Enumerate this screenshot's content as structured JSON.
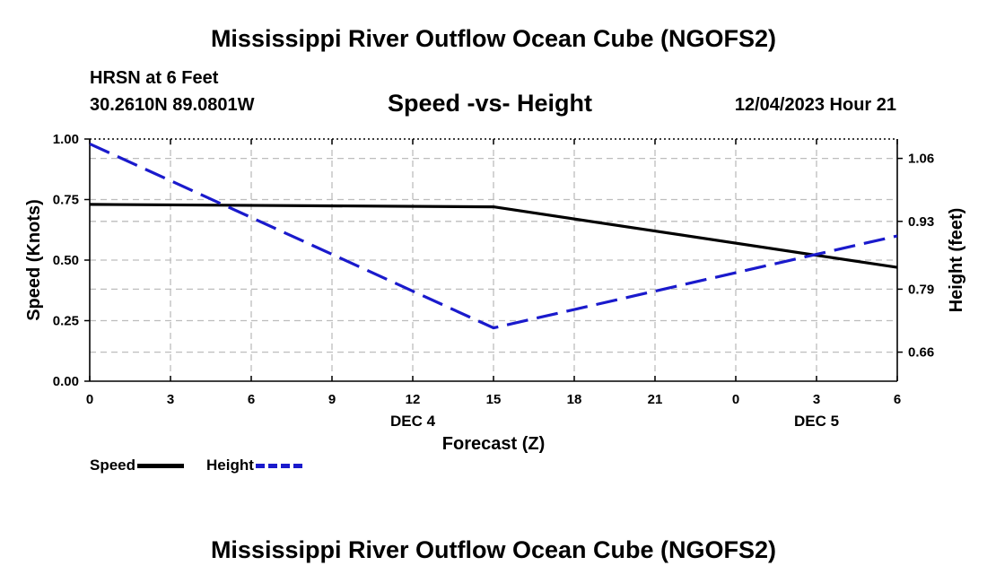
{
  "header": {
    "title": "Mississippi River Outflow Ocean Cube (NGOFS2)",
    "station": "HRSN at 6 Feet",
    "coords": "30.2610N  89.0801W",
    "datetime": "12/04/2023 Hour 21"
  },
  "footer": {
    "title": "Mississippi River Outflow Ocean Cube (NGOFS2)"
  },
  "chart_data": {
    "type": "line",
    "title": "Speed -vs- Height",
    "xlabel": "Forecast (Z)",
    "ylabel": "Speed (Knots)",
    "y2label": "Height (feet)",
    "x": [
      0,
      15,
      30
    ],
    "x_tick_labels": [
      "0",
      "3",
      "6",
      "9",
      "12",
      "15",
      "18",
      "21",
      "0",
      "3",
      "6"
    ],
    "date_labels": [
      {
        "label": "DEC 4",
        "at_hour": 12
      },
      {
        "label": "DEC 5",
        "at_hour": 27
      }
    ],
    "xlim": [
      0,
      30
    ],
    "ylim": [
      0,
      1.0
    ],
    "y_ticks": [
      "0.00",
      "0.25",
      "0.50",
      "0.75",
      "1.00"
    ],
    "y2lim": [
      0.6,
      1.1
    ],
    "y2_ticks": [
      "0.66",
      "0.79",
      "0.93",
      "1.06"
    ],
    "grid": true,
    "series": [
      {
        "name": "Speed",
        "axis": "left",
        "color": "#000000",
        "style": "solid",
        "x": [
          0,
          15,
          30
        ],
        "values": [
          0.73,
          0.72,
          0.47
        ]
      },
      {
        "name": "Height",
        "axis": "right",
        "color": "#1a1acc",
        "style": "dashed",
        "x": [
          0,
          15,
          30
        ],
        "values": [
          1.09,
          0.71,
          0.9
        ]
      }
    ],
    "legend": [
      {
        "label": "Speed",
        "color": "#000000",
        "style": "solid"
      },
      {
        "label": "Height",
        "color": "#1a1acc",
        "style": "dashed"
      }
    ]
  }
}
